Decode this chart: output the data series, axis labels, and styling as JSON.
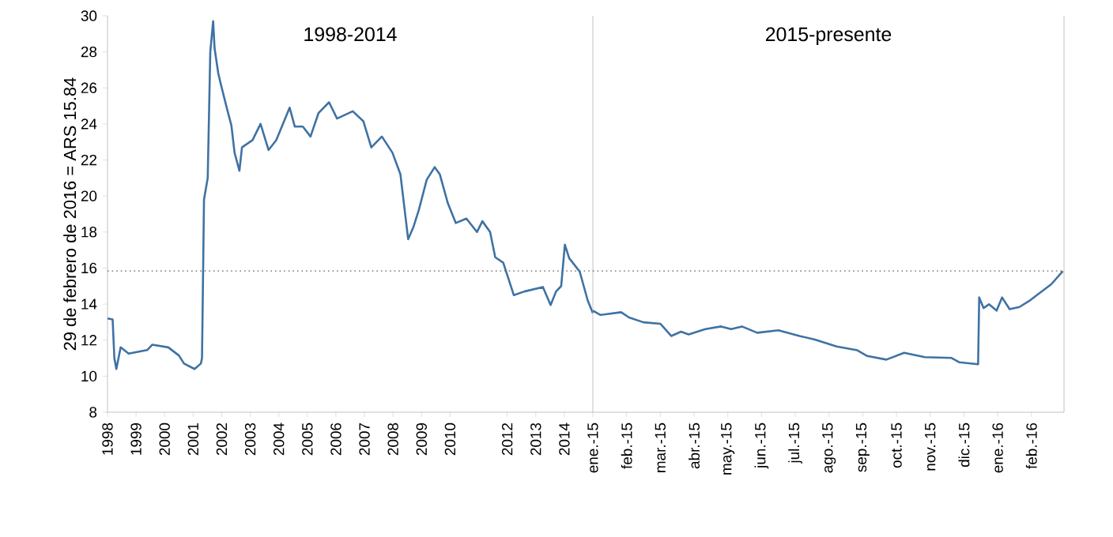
{
  "chart_data": [
    {
      "type": "line",
      "title": "1998-2014",
      "ylabel": "29 de febrero de 2016 = ARS 15.84",
      "color": "#3f72a3",
      "x": [
        1998.0,
        1998.18,
        1998.24,
        1998.31,
        1998.46,
        1998.74,
        1999.39,
        1999.57,
        2000.13,
        2000.5,
        2000.68,
        2001.05,
        2001.27,
        2001.31,
        2001.38,
        2001.51,
        2001.6,
        2001.7,
        2001.75,
        2001.88,
        2001.97,
        2002.16,
        2002.34,
        2002.45,
        2002.62,
        2002.71,
        2003.08,
        2003.36,
        2003.64,
        2003.91,
        2004.38,
        2004.56,
        2004.84,
        2005.11,
        2005.39,
        2005.76,
        2006.04,
        2006.59,
        2006.96,
        2007.24,
        2007.61,
        2007.98,
        2008.26,
        2008.53,
        2008.72,
        2008.9,
        2009.18,
        2009.46,
        2009.64,
        2009.92,
        2010.2,
        2010.57,
        2010.94,
        2011.13,
        2011.4,
        2011.58,
        2011.86,
        2012.23,
        2012.6,
        2013.25,
        2013.52,
        2013.71,
        2013.89,
        2014.02,
        2014.17,
        2014.54,
        2014.82,
        2015.0
      ],
      "values": [
        13.2,
        13.15,
        11.0,
        10.4,
        11.6,
        11.25,
        11.45,
        11.75,
        11.6,
        11.15,
        10.7,
        10.4,
        10.7,
        11.0,
        19.8,
        21.0,
        28.0,
        29.7,
        28.2,
        26.8,
        26.2,
        25.0,
        23.9,
        22.4,
        21.4,
        22.7,
        23.1,
        24.0,
        22.55,
        23.1,
        24.9,
        23.85,
        23.85,
        23.3,
        24.6,
        25.2,
        24.3,
        24.7,
        24.15,
        22.7,
        23.3,
        22.4,
        21.2,
        17.6,
        18.3,
        19.2,
        20.9,
        21.6,
        21.2,
        19.6,
        18.5,
        18.75,
        18.0,
        18.6,
        18.0,
        16.6,
        16.3,
        14.5,
        14.7,
        14.95,
        13.95,
        14.7,
        15.0,
        17.3,
        16.55,
        15.8,
        14.2,
        13.5
      ],
      "xlim": [
        1998,
        2015
      ],
      "xticks": [
        1998,
        1999,
        2000,
        2001,
        2002,
        2003,
        2004,
        2005,
        2006,
        2007,
        2008,
        2009,
        2010,
        2012,
        2013,
        2014
      ],
      "ylim": [
        8,
        30
      ],
      "yticks": [
        8,
        10,
        12,
        14,
        16,
        18,
        20,
        22,
        24,
        26,
        28,
        30
      ],
      "ref_lines": [
        {
          "axis": "y",
          "value": 15.84,
          "color": "#8c8c8c",
          "line_style": "dotted"
        }
      ]
    },
    {
      "type": "line",
      "title": "2015-presente",
      "color": "#3f72a3",
      "tick_labels": "x",
      "x": [
        "2015-01-01",
        "2015-01-08",
        "2015-01-27",
        "2015-02-03",
        "2015-02-15",
        "2015-03-01",
        "2015-03-11",
        "2015-03-20",
        "2015-03-27",
        "2015-04-11",
        "2015-04-25",
        "2015-05-04",
        "2015-05-14",
        "2015-05-28",
        "2015-06-16",
        "2015-07-05",
        "2015-07-19",
        "2015-08-08",
        "2015-08-27",
        "2015-09-05",
        "2015-09-22",
        "2015-10-08",
        "2015-10-27",
        "2015-11-20",
        "2015-11-27",
        "2015-12-14",
        "2015-12-15",
        "2015-12-19",
        "2015-12-24",
        "2015-12-31",
        "2016-01-05",
        "2016-01-12",
        "2016-01-21",
        "2016-01-31",
        "2016-02-09",
        "2016-02-18",
        "2016-02-28"
      ],
      "values": [
        13.64,
        13.4,
        13.55,
        13.26,
        12.99,
        12.91,
        12.23,
        12.47,
        12.32,
        12.61,
        12.76,
        12.61,
        12.76,
        12.41,
        12.55,
        12.23,
        12.03,
        11.65,
        11.44,
        11.12,
        10.92,
        11.3,
        11.06,
        11.01,
        10.77,
        10.66,
        14.37,
        13.78,
        13.99,
        13.64,
        14.37,
        13.72,
        13.84,
        14.22,
        14.66,
        15.1,
        15.83
      ],
      "xlim": [
        "2015-01-01",
        "2016-02-29"
      ],
      "xticks": [
        {
          "value": "2015-01-01",
          "label": "ene.-15"
        },
        {
          "value": "2015-02-01",
          "label": "feb.-15"
        },
        {
          "value": "2015-03-01",
          "label": "mar.-15"
        },
        {
          "value": "2015-04-01",
          "label": "abr.-15"
        },
        {
          "value": "2015-05-01",
          "label": "may.-15"
        },
        {
          "value": "2015-06-01",
          "label": "jun.-15"
        },
        {
          "value": "2015-07-01",
          "label": "jul.-15"
        },
        {
          "value": "2015-08-01",
          "label": "ago.-15"
        },
        {
          "value": "2015-09-01",
          "label": "sep.-15"
        },
        {
          "value": "2015-10-01",
          "label": "oct.-15"
        },
        {
          "value": "2015-11-01",
          "label": "nov.-15"
        },
        {
          "value": "2015-12-01",
          "label": "dic.-15"
        },
        {
          "value": "2016-01-01",
          "label": "ene.-16"
        },
        {
          "value": "2016-02-01",
          "label": "feb.-16"
        }
      ],
      "ylim": [
        8,
        30
      ],
      "ref_lines": [
        {
          "axis": "y",
          "value": 15.84,
          "color": "#8c8c8c",
          "line_style": "dotted"
        }
      ]
    }
  ]
}
